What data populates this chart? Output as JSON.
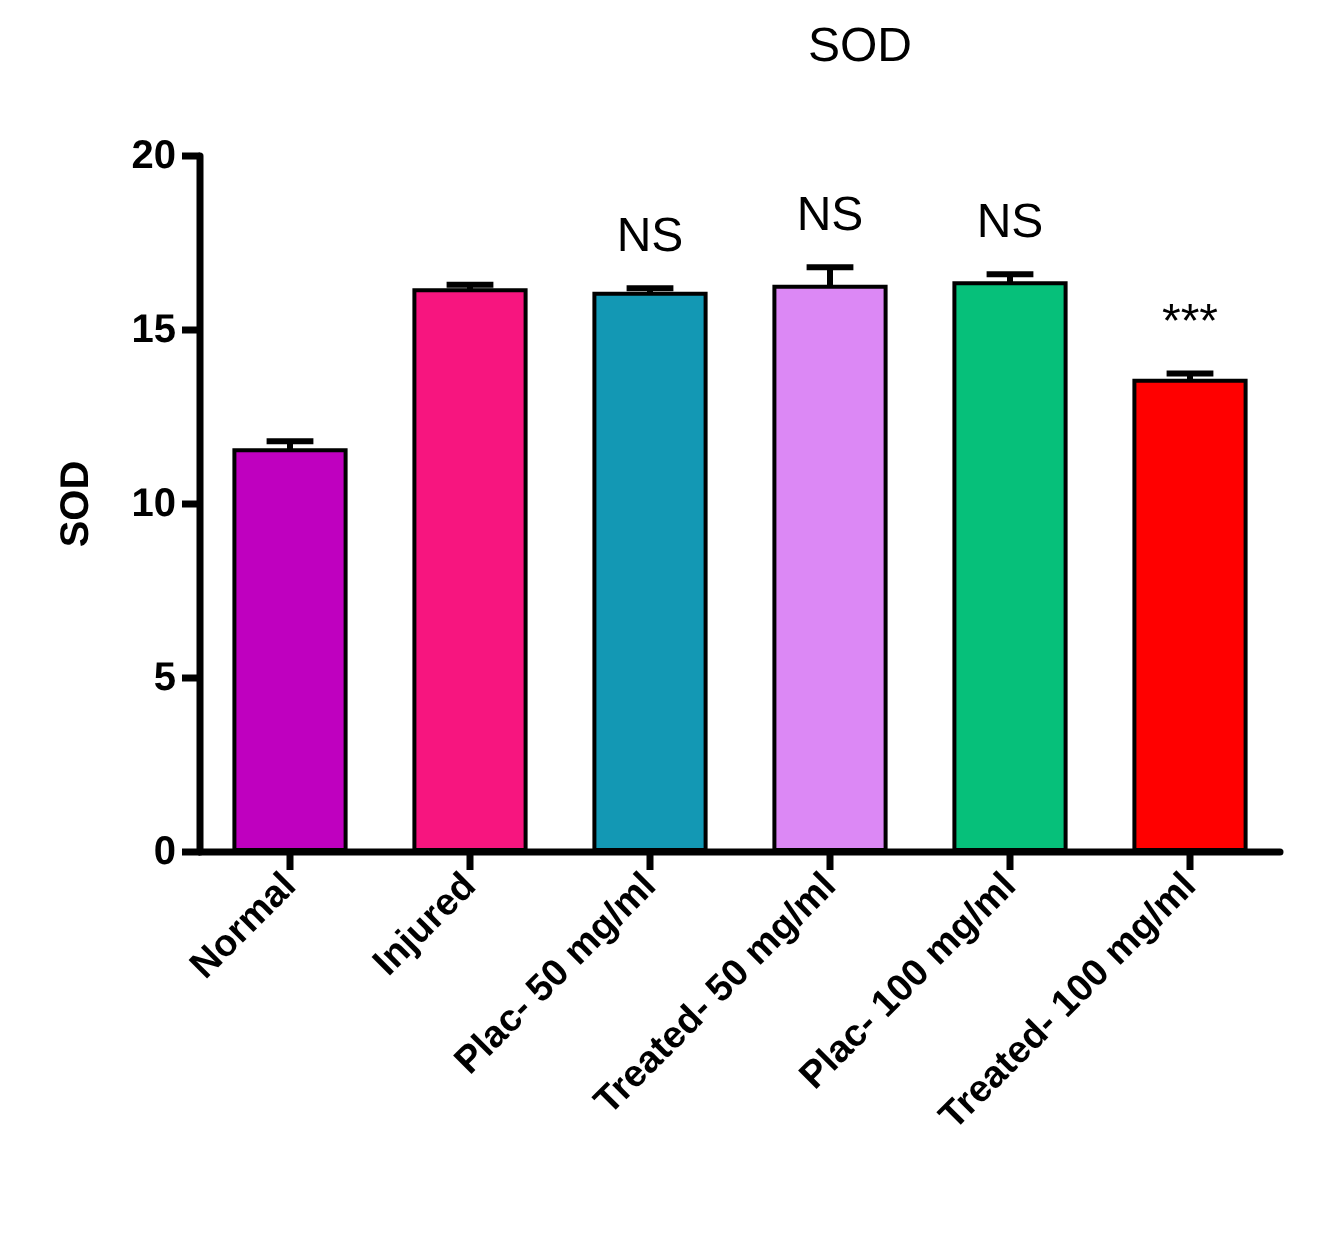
{
  "chart_data": {
    "type": "bar",
    "title": "SOD",
    "ylabel": "SOD",
    "categories": [
      "Normal",
      "Injured",
      "Plac- 50 mg/ml",
      "Treated- 50 mg/ml",
      "Plac- 100 mg/ml",
      "Treated- 100 mg/ml"
    ],
    "values": [
      11.6,
      16.2,
      16.1,
      16.3,
      16.4,
      13.6
    ],
    "errors": [
      0.2,
      0.1,
      0.1,
      0.5,
      0.2,
      0.15
    ],
    "value_labels": [
      null,
      null,
      "NS",
      "NS",
      "NS",
      "***"
    ],
    "colors": [
      "#bf00bf",
      "#f7157f",
      "#1398b4",
      "#dc88f5",
      "#06c07a",
      "#ff0000"
    ],
    "ylim": [
      0,
      20
    ],
    "yticks": [
      0,
      5,
      10,
      15,
      20
    ],
    "grid": false
  }
}
